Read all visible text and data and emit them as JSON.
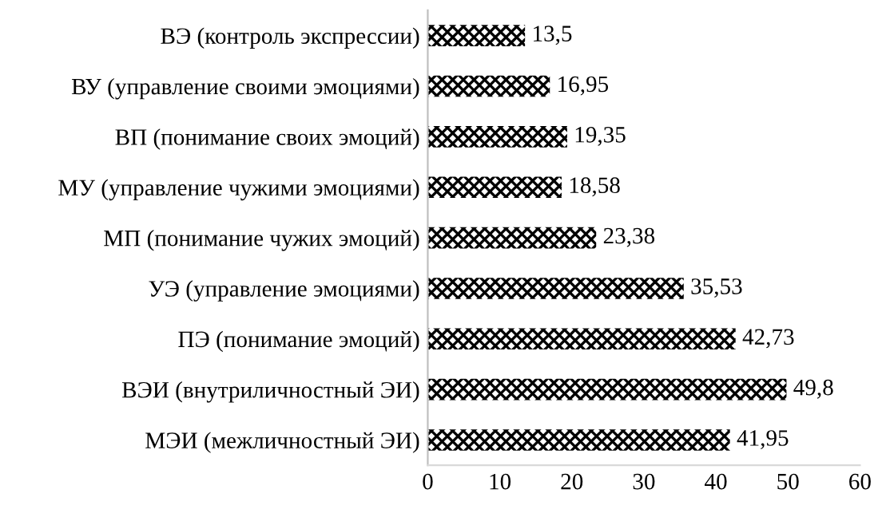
{
  "chart_data": {
    "type": "bar",
    "orientation": "horizontal",
    "categories": [
      "ВЭ (контроль экспрессии)",
      "ВУ (управление своими эмоциями)",
      "ВП (понимание своих эмоций)",
      "МУ (управление чужими эмоциями)",
      "МП (понимание чужих эмоций)",
      "УЭ (управление эмоциями)",
      "ПЭ (понимание эмоций)",
      "ВЭИ (внутриличностный ЭИ)",
      "МЭИ (межличностный ЭИ)"
    ],
    "values": [
      13.5,
      16.95,
      19.35,
      18.58,
      23.38,
      35.53,
      42.73,
      49.8,
      41.95
    ],
    "value_labels": [
      "13,5",
      "16,95",
      "19,35",
      "18,58",
      "23,38",
      "35,53",
      "42,73",
      "49,8",
      "41,95"
    ],
    "color": "#000000",
    "xlim": [
      0,
      60
    ],
    "xticks": [
      0,
      10,
      20,
      30,
      40,
      50,
      60
    ],
    "grid": false,
    "legend": false
  }
}
